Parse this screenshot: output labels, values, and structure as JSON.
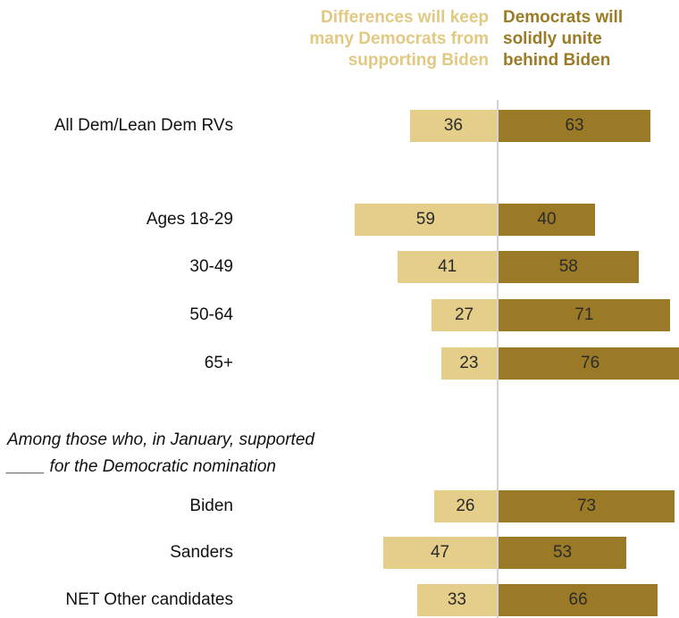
{
  "chart_data": {
    "type": "bar",
    "orientation": "horizontal-diverging",
    "series": [
      {
        "name": "Differences will keep many Democrats from supporting Biden",
        "color": "#e5cd8a"
      },
      {
        "name": "Democrats will solidly unite behind Biden",
        "color": "#9a7a26"
      }
    ],
    "legend": {
      "left_lines": [
        "Differences will keep",
        "many Democrats from",
        "supporting Biden"
      ],
      "right_lines": [
        "Democrats will",
        "solidly unite",
        "behind Biden"
      ]
    },
    "section_note": {
      "line1": "Among those who, in January, supported",
      "line2": "____ for the Democratic nomination"
    },
    "rows": [
      {
        "label": "All Dem/Lean Dem RVs",
        "left": 36,
        "right": 63
      },
      {
        "label": "Ages 18-29",
        "left": 59,
        "right": 40
      },
      {
        "label": "30-49",
        "left": 41,
        "right": 58
      },
      {
        "label": "50-64",
        "left": 27,
        "right": 71
      },
      {
        "label": "65+",
        "left": 23,
        "right": 76
      },
      {
        "label": "Biden",
        "left": 26,
        "right": 73
      },
      {
        "label": "Sanders",
        "left": 47,
        "right": 53
      },
      {
        "label": "NET Other candidates",
        "left": 33,
        "right": 66
      }
    ]
  }
}
